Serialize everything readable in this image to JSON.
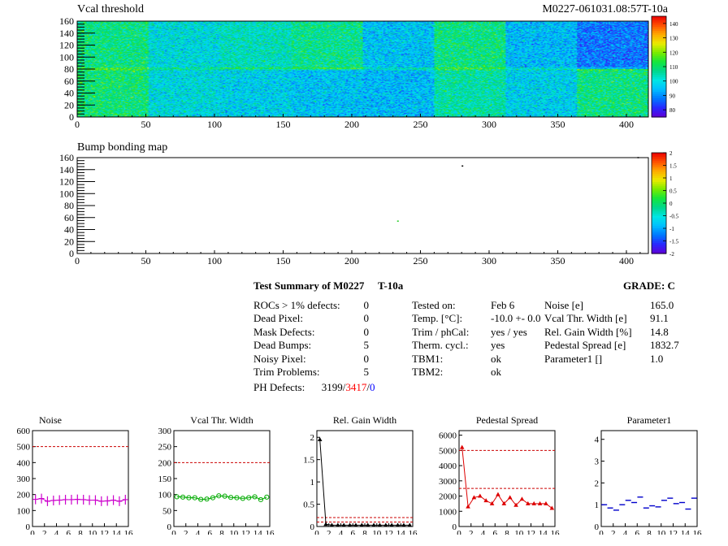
{
  "header": {
    "left_title": "Vcal threshold",
    "right_title": "M0227-061031.08:57T-10a"
  },
  "chart_data": [
    {
      "type": "heatmap",
      "title": "Vcal threshold",
      "x_ticks": [
        0,
        50,
        100,
        150,
        200,
        250,
        300,
        350,
        400
      ],
      "y_ticks": [
        0,
        20,
        40,
        60,
        80,
        100,
        120,
        140,
        160
      ],
      "xlim": [
        0,
        416
      ],
      "ylim": [
        0,
        160
      ],
      "colorbar_ticks": [
        80,
        90,
        100,
        110,
        120,
        130,
        140
      ],
      "colorbar_range": [
        75,
        145
      ],
      "roc_blocks": [
        {
          "row": "top",
          "col": 0,
          "mean": 108
        },
        {
          "row": "top",
          "col": 1,
          "mean": 100
        },
        {
          "row": "top",
          "col": 2,
          "mean": 103
        },
        {
          "row": "top",
          "col": 3,
          "mean": 107
        },
        {
          "row": "top",
          "col": 4,
          "mean": 96
        },
        {
          "row": "top",
          "col": 5,
          "mean": 108
        },
        {
          "row": "top",
          "col": 6,
          "mean": 95
        },
        {
          "row": "top",
          "col": 7,
          "mean": 88
        },
        {
          "row": "bottom",
          "col": 0,
          "mean": 109
        },
        {
          "row": "bottom",
          "col": 1,
          "mean": 100
        },
        {
          "row": "bottom",
          "col": 2,
          "mean": 98
        },
        {
          "row": "bottom",
          "col": 3,
          "mean": 96
        },
        {
          "row": "bottom",
          "col": 4,
          "mean": 95
        },
        {
          "row": "bottom",
          "col": 5,
          "mean": 105
        },
        {
          "row": "bottom",
          "col": 6,
          "mean": 98
        },
        {
          "row": "bottom",
          "col": 7,
          "mean": 108
        }
      ]
    },
    {
      "type": "heatmap",
      "title": "Bump bonding map",
      "x_ticks": [
        0,
        50,
        100,
        150,
        200,
        250,
        300,
        350,
        400
      ],
      "y_ticks": [
        0,
        20,
        40,
        60,
        80,
        100,
        120,
        140,
        160
      ],
      "xlim": [
        0,
        416
      ],
      "ylim": [
        0,
        160
      ],
      "colorbar_ticks": [
        "2",
        "1.5",
        "1",
        "0.5",
        "0",
        "-0.5",
        "-1",
        "-1.5",
        "-2"
      ],
      "colorbar_range": [
        -2,
        2
      ],
      "points": [
        {
          "x": 280,
          "y": 145,
          "color": "#000000"
        },
        {
          "x": 233,
          "y": 53,
          "color": "#22cc22"
        },
        {
          "x": 408,
          "y": 159,
          "color": "#000000"
        }
      ]
    },
    {
      "type": "line",
      "title": "Noise",
      "x": [
        0,
        1,
        2,
        3,
        4,
        5,
        6,
        7,
        8,
        9,
        10,
        11,
        12,
        13,
        14,
        15
      ],
      "values": [
        170,
        175,
        158,
        163,
        165,
        168,
        168,
        170,
        168,
        165,
        165,
        158,
        160,
        165,
        158,
        168
      ],
      "xlim": [
        0,
        16
      ],
      "ylim": [
        0,
        600
      ],
      "x_ticks": [
        0,
        2,
        4,
        6,
        8,
        10,
        12,
        14,
        16
      ],
      "y_ticks": [
        0,
        100,
        200,
        300,
        400,
        500,
        600
      ],
      "limits": [
        500
      ],
      "color": "#cc00cc",
      "marker": "plus"
    },
    {
      "type": "line",
      "title": "Vcal Thr. Width",
      "x": [
        0,
        1,
        2,
        3,
        4,
        5,
        6,
        7,
        8,
        9,
        10,
        11,
        12,
        13,
        14,
        15
      ],
      "values": [
        93,
        92,
        90,
        90,
        85,
        86,
        90,
        96,
        95,
        91,
        90,
        88,
        90,
        93,
        84,
        92
      ],
      "xlim": [
        0,
        16
      ],
      "ylim": [
        0,
        300
      ],
      "x_ticks": [
        0,
        2,
        4,
        6,
        8,
        10,
        12,
        14,
        16
      ],
      "y_ticks": [
        0,
        50,
        100,
        150,
        200,
        250,
        300
      ],
      "limits": [
        200
      ],
      "color": "#00aa00",
      "marker": "circle"
    },
    {
      "type": "line",
      "title": "Rel. Gain Width",
      "x": [
        0,
        1,
        2,
        3,
        4,
        5,
        6,
        7,
        8,
        9,
        10,
        11,
        12,
        13,
        14,
        15
      ],
      "values": [
        1.95,
        0.05,
        0.03,
        0.03,
        0.03,
        0.03,
        0.03,
        0.03,
        0.03,
        0.03,
        0.03,
        0.03,
        0.03,
        0.03,
        0.03,
        0.03
      ],
      "xlim": [
        0,
        16
      ],
      "ylim": [
        0,
        2.15
      ],
      "x_ticks": [
        0,
        2,
        4,
        6,
        8,
        10,
        12,
        14,
        16
      ],
      "y_ticks": [
        0,
        0.5,
        1,
        1.5,
        2
      ],
      "y_tick_labels": [
        "0",
        "0.5",
        "1",
        "1.5",
        "2"
      ],
      "limits": [
        0.1,
        0.2
      ],
      "color": "#000000",
      "marker": "triangle"
    },
    {
      "type": "line",
      "title": "Pedestal Spread",
      "x": [
        0,
        1,
        2,
        3,
        4,
        5,
        6,
        7,
        8,
        9,
        10,
        11,
        12,
        13,
        14,
        15
      ],
      "values": [
        5200,
        1300,
        1900,
        2000,
        1700,
        1500,
        2100,
        1500,
        1900,
        1400,
        1800,
        1500,
        1500,
        1500,
        1500,
        1200
      ],
      "xlim": [
        0,
        16
      ],
      "ylim": [
        0,
        6300
      ],
      "x_ticks": [
        0,
        2,
        4,
        6,
        8,
        10,
        12,
        14,
        16
      ],
      "y_ticks": [
        0,
        1000,
        2000,
        3000,
        4000,
        5000,
        6000
      ],
      "limits": [
        2500,
        5000
      ],
      "color": "#dd0000",
      "marker": "triangle"
    },
    {
      "type": "scatter",
      "title": "Parameter1",
      "x": [
        0,
        1,
        2,
        3,
        4,
        5,
        6,
        7,
        8,
        9,
        10,
        11,
        12,
        13,
        14,
        15
      ],
      "values": [
        1.0,
        0.85,
        0.75,
        1.0,
        1.2,
        1.1,
        1.35,
        0.85,
        0.95,
        0.9,
        1.2,
        1.3,
        1.05,
        1.1,
        0.8,
        1.3
      ],
      "xlim": [
        0,
        16
      ],
      "ylim": [
        0,
        4.4
      ],
      "x_ticks": [
        0,
        2,
        4,
        6,
        8,
        10,
        12,
        14,
        16
      ],
      "y_ticks": [
        0,
        1,
        2,
        3,
        4
      ],
      "color": "#0000cc",
      "marker": "dash"
    }
  ],
  "summary": {
    "title": "Test Summary of M0227",
    "temp_label": "T-10a",
    "grade": "GRADE:  C",
    "left": [
      {
        "label": "ROCs > 1% defects:",
        "value": "0"
      },
      {
        "label": "Dead Pixel:",
        "value": "0"
      },
      {
        "label": "Mask Defects:",
        "value": "0"
      },
      {
        "label": "Dead Bumps:",
        "value": "5"
      },
      {
        "label": "Noisy Pixel:",
        "value": "0"
      },
      {
        "label": "Trim Problems:",
        "value": "5"
      }
    ],
    "ph_defects": {
      "label": "PH Defects:",
      "a": "3199",
      "sep1": "/",
      "b": "3417",
      "sep2": "/",
      "c": "0",
      "a_color": "#000000",
      "b_color": "#ff0000",
      "c_color": "#0000ff"
    },
    "middle": [
      {
        "label": "Tested on:",
        "value": "Feb 6"
      },
      {
        "label": "Temp. [°C]:",
        "value": "-10.0 +- 0.0"
      },
      {
        "label": "Trim / phCal:",
        "value": "yes / yes"
      },
      {
        "label": "Therm. cycl.:",
        "value": "yes"
      },
      {
        "label": "TBM1:",
        "value": "ok"
      },
      {
        "label": "TBM2:",
        "value": "ok"
      }
    ],
    "right": [
      {
        "label": "Noise [e]",
        "value": "165.0"
      },
      {
        "label": "Vcal Thr. Width [e]",
        "value": "91.1"
      },
      {
        "label": "Rel. Gain Width [%]",
        "value": "14.8"
      },
      {
        "label": "Pedestal Spread [e]",
        "value": "1832.7"
      },
      {
        "label": "Parameter1 []",
        "value": "1.0"
      }
    ]
  }
}
